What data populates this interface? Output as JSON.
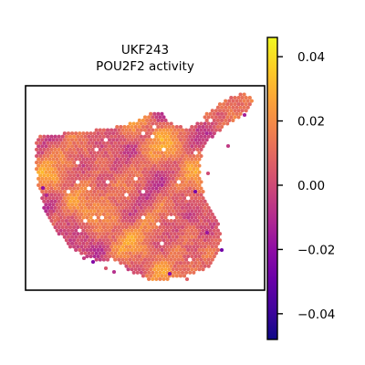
{
  "chart_data": {
    "type": "heatmap",
    "subtype": "spatial-hex-spots",
    "title_line1": "UKF243",
    "title_line2": "POU2F2 activity",
    "colormap": "plasma",
    "vmin": -0.048,
    "vmax": 0.046,
    "colorbar_ticks": [
      0.04,
      0.02,
      0.0,
      -0.02,
      -0.04
    ],
    "colorbar_tick_labels": [
      "0.04",
      "0.02",
      "0.00",
      "−0.02",
      "−0.04"
    ],
    "value_range_estimate": [
      -0.04,
      0.04
    ],
    "frame": true,
    "axes_visible": false
  }
}
